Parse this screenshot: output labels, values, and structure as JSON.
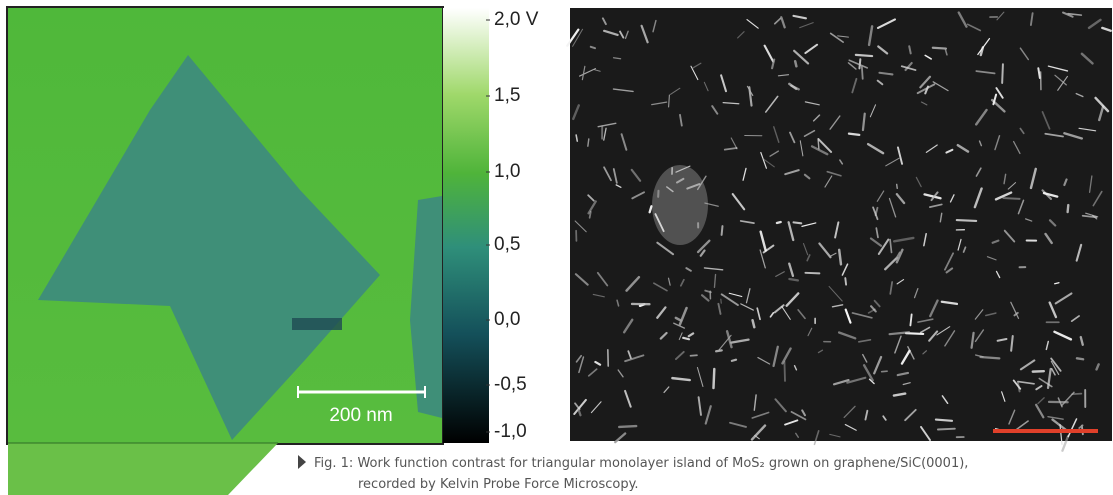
{
  "figure": {
    "colorbar_ticks": [
      "2,0 V",
      "1,5",
      "1,0",
      "0,5",
      "0,0",
      "-0,5",
      "-1,0"
    ],
    "scale_bar": "200 nm",
    "caption_lines": [
      "Fig. 1: Work function contrast for triangular monolayer island of MoS₂ grown on graphene/SiC(0001),",
      "recorded by Kelvin Probe Force Microscopy."
    ]
  }
}
